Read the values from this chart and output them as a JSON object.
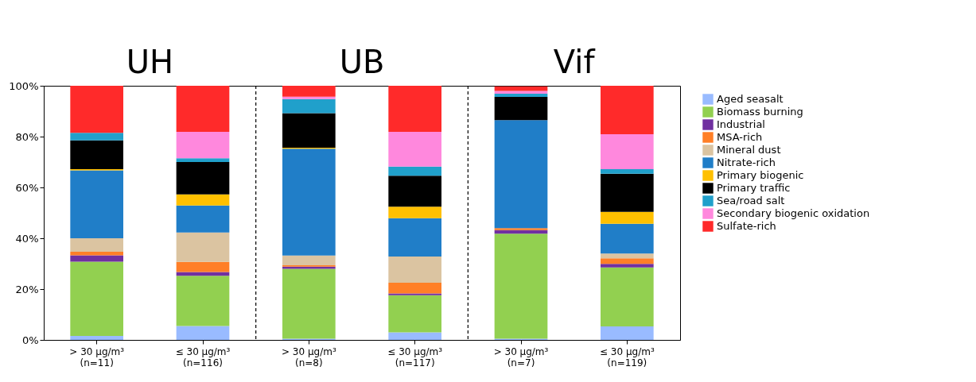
{
  "chart_data": {
    "type": "bar",
    "stacked": true,
    "annotations": [
      "UH",
      "UB",
      "Vif"
    ],
    "categories": [
      "> 30 µg/m³\n(n=11)",
      "≤ 30 µg/m³\n(n=116)",
      "> 30 µg/m³\n(n=8)",
      "≤ 30 µg/m³\n(n=117)",
      "> 30 µg/m³\n(n=7)",
      "≤ 30 µg/m³\n(n=119)"
    ],
    "ylim": [
      0,
      100
    ],
    "yticks": [
      {
        "value": 0,
        "label": "0%"
      },
      {
        "value": 20,
        "label": "20%"
      },
      {
        "value": 40,
        "label": "40%"
      },
      {
        "value": 60,
        "label": "60%"
      },
      {
        "value": 80,
        "label": "80%"
      },
      {
        "value": 100,
        "label": "100%"
      }
    ],
    "grid": false,
    "legend": "right",
    "series": [
      {
        "name": "Aged seasalt",
        "color": "#99bbff",
        "values": [
          1.6,
          5.5,
          0.5,
          3.0,
          0.5,
          5.3
        ]
      },
      {
        "name": "Biomass burning",
        "color": "#92d050",
        "values": [
          29.2,
          19.7,
          27.5,
          14.6,
          41.3,
          23.2
        ]
      },
      {
        "name": "Industrial",
        "color": "#7030a0",
        "values": [
          2.5,
          1.5,
          0.8,
          0.7,
          1.4,
          1.4
        ]
      },
      {
        "name": "MSA-rich",
        "color": "#ff7f27",
        "values": [
          1.4,
          4.0,
          0.6,
          4.2,
          0.8,
          2.2
        ]
      },
      {
        "name": "Mineral dust",
        "color": "#dbc4a1",
        "values": [
          5.3,
          11.6,
          3.8,
          10.3,
          null,
          1.9
        ]
      },
      {
        "name": "Nitrate-rich",
        "color": "#207ec8",
        "values": [
          26.7,
          10.6,
          42.0,
          15.1,
          42.5,
          11.7
        ]
      },
      {
        "name": "Primary biogenic",
        "color": "#ffc000",
        "values": [
          0.5,
          4.4,
          0.4,
          4.5,
          0,
          4.7
        ]
      },
      {
        "name": "Primary traffic",
        "color": "#000000",
        "values": [
          11.3,
          12.7,
          13.6,
          12.2,
          9.1,
          15.0
        ]
      },
      {
        "name": "Sea/road salt",
        "color": "#20a0cb",
        "values": [
          3.0,
          1.5,
          5.6,
          3.6,
          1.3,
          1.8
        ]
      },
      {
        "name": "Secondary biogenic oxidation",
        "color": "#ff88dd",
        "values": [
          0,
          10.4,
          0.9,
          13.7,
          1.1,
          13.7
        ]
      },
      {
        "name": "Sulfate-rich",
        "color": "#ff2a2a",
        "values": [
          18.5,
          18.1,
          4.3,
          18.1,
          1.8,
          19.1
        ]
      }
    ]
  }
}
